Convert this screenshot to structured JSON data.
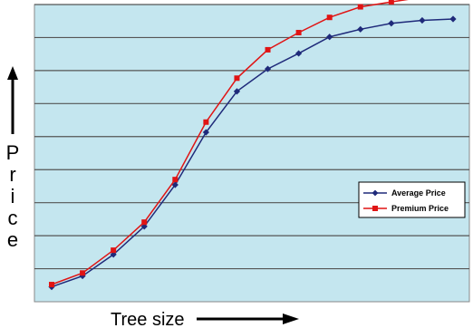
{
  "chart_data": {
    "type": "line",
    "xlabel": "Tree size",
    "ylabel": "Price",
    "x": [
      1,
      2,
      3,
      4,
      5,
      6,
      7,
      8,
      9,
      10,
      11,
      12,
      13,
      14
    ],
    "ylim": [
      0,
      9
    ],
    "grid": true,
    "legend_position": "right",
    "plot_background": "#c4e6ef",
    "grid_color": "#555555",
    "series": [
      {
        "name": "Average Price",
        "color": "#1f2a7a",
        "marker": "diamond",
        "values": [
          0.45,
          0.78,
          1.43,
          2.28,
          3.54,
          5.13,
          6.37,
          7.05,
          7.52,
          8.02,
          8.25,
          8.43,
          8.52,
          8.56
        ]
      },
      {
        "name": "Premium Price",
        "color": "#e01414",
        "marker": "square",
        "values": [
          0.52,
          0.87,
          1.56,
          2.41,
          3.7,
          5.44,
          6.77,
          7.63,
          8.15,
          8.61,
          8.93,
          9.08,
          9.22,
          9.28
        ]
      }
    ]
  }
}
